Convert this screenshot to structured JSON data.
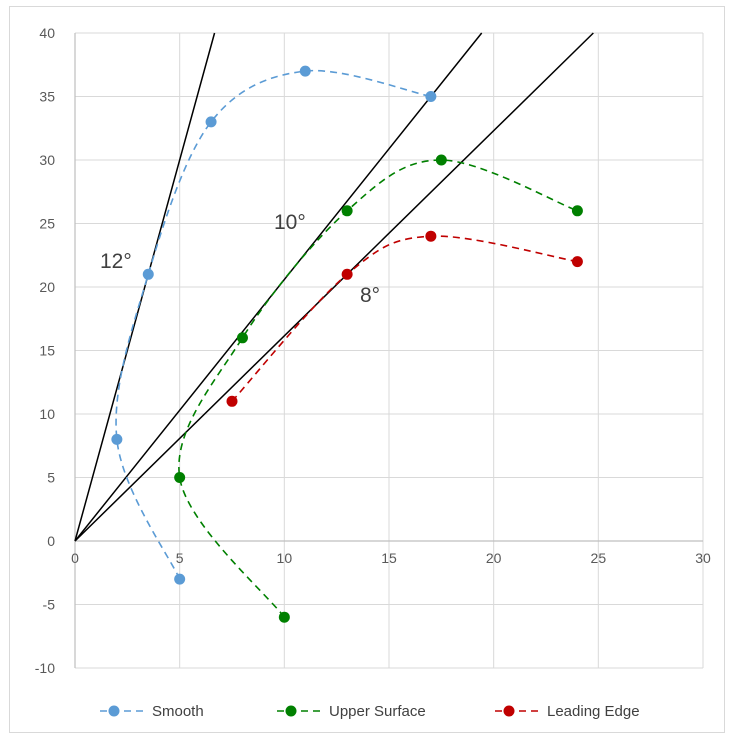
{
  "chart_data": {
    "type": "scatter",
    "title": "",
    "xlabel": "",
    "ylabel": "",
    "xlim": [
      0,
      30
    ],
    "ylim": [
      -10,
      40
    ],
    "x_ticks": [
      0,
      5,
      10,
      15,
      20,
      25,
      30
    ],
    "y_ticks": [
      -10,
      -5,
      0,
      5,
      10,
      15,
      20,
      25,
      30,
      35,
      40
    ],
    "grid": true,
    "legend_position": "bottom",
    "series": [
      {
        "name": "Smooth",
        "color": "#5B9BD5",
        "line_style": "dashed",
        "marker": "circle",
        "x": [
          5.0,
          2.0,
          3.5,
          6.5,
          11.0,
          17.0
        ],
        "y": [
          -3.0,
          8.0,
          21.0,
          33.0,
          37.0,
          35.0
        ]
      },
      {
        "name": "Upper Surface",
        "color": "#008000",
        "line_style": "dashed",
        "marker": "circle",
        "x": [
          10.0,
          5.0,
          8.0,
          13.0,
          17.5,
          24.0
        ],
        "y": [
          -6.0,
          5.0,
          16.0,
          26.0,
          30.0,
          26.0
        ]
      },
      {
        "name": "Leading Edge",
        "color": "#C00000",
        "line_style": "dashed",
        "marker": "circle",
        "x": [
          7.5,
          13.0,
          17.0,
          24.0
        ],
        "y": [
          11.0,
          21.0,
          24.0,
          22.0
        ]
      }
    ],
    "reference_lines": [
      {
        "label": "12°",
        "through": [
          3.5,
          21.0
        ],
        "color": "#000000"
      },
      {
        "label": "10°",
        "through": [
          17.0,
          35.0
        ],
        "color": "#000000"
      },
      {
        "label": "8°",
        "through": [
          13.0,
          21.0
        ],
        "color": "#000000"
      }
    ]
  }
}
